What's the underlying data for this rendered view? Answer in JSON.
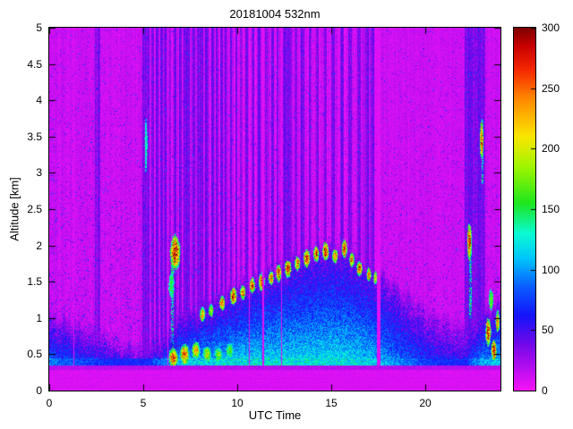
{
  "chart_data": {
    "type": "heatmap",
    "title": "20181004 532nm",
    "xlabel": "UTC Time",
    "ylabel": "Altitude [km]",
    "x_range": [
      0,
      24
    ],
    "y_range": [
      0,
      5
    ],
    "x_ticks": [
      0,
      5,
      10,
      15,
      20
    ],
    "x_tick_labels": [
      "0",
      "5",
      "10",
      "15",
      "20"
    ],
    "y_ticks": [
      0,
      0.5,
      1,
      1.5,
      2,
      2.5,
      3,
      3.5,
      4,
      4.5,
      5
    ],
    "y_tick_labels": [
      "0",
      "0.5",
      "1",
      "1.5",
      "2",
      "2.5",
      "3",
      "3.5",
      "4",
      "4.5",
      "5"
    ],
    "axes": {
      "tick_direction": "in",
      "box": true,
      "grid": false,
      "legend": "none"
    },
    "colorbar": {
      "min": 0,
      "max": 300,
      "ticks": [
        0,
        50,
        100,
        150,
        200,
        250,
        300
      ],
      "tick_labels": [
        "0",
        "50",
        "100",
        "150",
        "200",
        "250",
        "300"
      ],
      "position": "right"
    },
    "colormap": [
      [
        0,
        "#F714F7"
      ],
      [
        38,
        "#7208E8"
      ],
      [
        62,
        "#1414FA"
      ],
      [
        85,
        "#0A5AFF"
      ],
      [
        110,
        "#00C8FA"
      ],
      [
        130,
        "#0AFAD2"
      ],
      [
        155,
        "#1EE61E"
      ],
      [
        185,
        "#A0F500"
      ],
      [
        210,
        "#FAE600"
      ],
      [
        240,
        "#FF8C00"
      ],
      [
        265,
        "#F52800"
      ],
      [
        285,
        "#C80000"
      ],
      [
        300,
        "#7D0000"
      ]
    ],
    "field": {
      "background": {
        "base": 6,
        "noise": 13,
        "speckle_prob": 0.05,
        "speckle_value": 30,
        "speckle_spread": 55
      },
      "surface_band": {
        "top_km": 0.28,
        "value": 5,
        "noise": 7
      },
      "transition_band": {
        "z0": 0.28,
        "z1": 0.34,
        "value": 13,
        "noise": 11
      },
      "boundary_layer": {
        "z_base_km": 0.3,
        "value_bottom": 128,
        "value_top": 40,
        "noise": 46,
        "top_km_points": [
          [
            0,
            0.95
          ],
          [
            1,
            0.9
          ],
          [
            2,
            0.8
          ],
          [
            3,
            0.72
          ],
          [
            4,
            0.62
          ],
          [
            5,
            0.55
          ],
          [
            6,
            0.62
          ],
          [
            6.5,
            0.8
          ],
          [
            7,
            0.95
          ],
          [
            8,
            1.05
          ],
          [
            9,
            1.18
          ],
          [
            10,
            1.32
          ],
          [
            11,
            1.45
          ],
          [
            12,
            1.58
          ],
          [
            13,
            1.72
          ],
          [
            14,
            1.82
          ],
          [
            15,
            1.88
          ],
          [
            16,
            1.78
          ],
          [
            17,
            1.62
          ],
          [
            18,
            1.45
          ],
          [
            19,
            1.25
          ],
          [
            20,
            1.08
          ],
          [
            21,
            0.95
          ],
          [
            22,
            0.88
          ],
          [
            23,
            1.0
          ],
          [
            24,
            1.1
          ]
        ],
        "intensity_points": [
          [
            0,
            0.75
          ],
          [
            2,
            0.62
          ],
          [
            4,
            0.52
          ],
          [
            5,
            0.5
          ],
          [
            6,
            0.72
          ],
          [
            7,
            0.9
          ],
          [
            8,
            0.95
          ],
          [
            10,
            1
          ],
          [
            14,
            1
          ],
          [
            16,
            1
          ],
          [
            17,
            0.95
          ],
          [
            18,
            0.85
          ],
          [
            19,
            0.72
          ],
          [
            20,
            0.62
          ],
          [
            21,
            0.55
          ],
          [
            22,
            0.5
          ],
          [
            23,
            0.85
          ],
          [
            24,
            0.95
          ]
        ]
      },
      "stripe_dark_value": {
        "base": 24,
        "noise": 22
      },
      "stripe_bright_value": {
        "base": 3,
        "noise": 8
      },
      "dark_stripes": [
        [
          2.42,
          2.52
        ],
        [
          2.58,
          2.72
        ],
        [
          4.97,
          5.35
        ],
        [
          5.45,
          5.55
        ],
        [
          5.65,
          5.8
        ],
        [
          5.9,
          6.05
        ],
        [
          6.1,
          6.22
        ],
        [
          6.38,
          6.5
        ],
        [
          6.6,
          6.75
        ],
        [
          6.9,
          7.05
        ],
        [
          7.15,
          7.5
        ],
        [
          7.6,
          7.75
        ],
        [
          7.85,
          8.2
        ],
        [
          8.3,
          8.5
        ],
        [
          8.6,
          8.75
        ],
        [
          8.85,
          9.0
        ],
        [
          9.1,
          9.25
        ],
        [
          9.35,
          9.45
        ],
        [
          9.6,
          9.7
        ],
        [
          9.9,
          10.0
        ],
        [
          10.15,
          10.25
        ],
        [
          10.45,
          10.55
        ],
        [
          10.8,
          10.9
        ],
        [
          11.1,
          11.25
        ],
        [
          11.5,
          11.6
        ],
        [
          11.8,
          11.95
        ],
        [
          12.1,
          12.2
        ],
        [
          12.45,
          12.9
        ],
        [
          13.05,
          13.2
        ],
        [
          13.4,
          13.55
        ],
        [
          13.8,
          13.95
        ],
        [
          14.2,
          14.35
        ],
        [
          14.6,
          14.75
        ],
        [
          15.0,
          15.2
        ],
        [
          15.5,
          15.65
        ],
        [
          15.9,
          16.1
        ],
        [
          16.4,
          16.55
        ],
        [
          16.8,
          17.0
        ],
        [
          17.1,
          17.3
        ],
        [
          22.1,
          23.2
        ]
      ],
      "bright_stripes": [
        [
          1.28,
          1.34
        ],
        [
          6.28,
          6.34
        ],
        [
          10.62,
          10.68
        ],
        [
          11.35,
          11.42
        ],
        [
          12.32,
          12.4
        ],
        [
          17.42,
          17.62
        ]
      ],
      "clouds": [
        [
          6.7,
          1.9,
          0.55,
          0.5,
          300
        ],
        [
          6.5,
          1.45,
          0.3,
          0.35,
          150
        ],
        [
          6.6,
          0.45,
          0.5,
          0.28,
          285
        ],
        [
          7.2,
          0.5,
          0.5,
          0.3,
          265
        ],
        [
          7.8,
          0.55,
          0.45,
          0.25,
          235
        ],
        [
          8.4,
          0.5,
          0.45,
          0.22,
          205
        ],
        [
          9.0,
          0.5,
          0.4,
          0.2,
          185
        ],
        [
          9.6,
          0.55,
          0.4,
          0.2,
          170
        ],
        [
          8.15,
          1.05,
          0.3,
          0.2,
          240
        ],
        [
          8.6,
          1.1,
          0.28,
          0.18,
          205
        ],
        [
          9.2,
          1.2,
          0.3,
          0.2,
          260
        ],
        [
          9.8,
          1.3,
          0.35,
          0.25,
          290
        ],
        [
          10.3,
          1.35,
          0.3,
          0.2,
          250
        ],
        [
          10.8,
          1.45,
          0.3,
          0.22,
          280
        ],
        [
          11.3,
          1.5,
          0.35,
          0.25,
          300
        ],
        [
          11.8,
          1.55,
          0.3,
          0.2,
          260
        ],
        [
          12.2,
          1.62,
          0.28,
          0.25,
          290
        ],
        [
          12.7,
          1.68,
          0.35,
          0.25,
          300
        ],
        [
          13.2,
          1.75,
          0.3,
          0.2,
          270
        ],
        [
          13.7,
          1.82,
          0.35,
          0.25,
          300
        ],
        [
          14.2,
          1.88,
          0.3,
          0.22,
          280
        ],
        [
          14.7,
          1.92,
          0.35,
          0.25,
          300
        ],
        [
          15.2,
          1.85,
          0.3,
          0.2,
          260
        ],
        [
          15.7,
          1.95,
          0.3,
          0.25,
          290
        ],
        [
          16.1,
          1.8,
          0.28,
          0.2,
          255
        ],
        [
          16.5,
          1.68,
          0.3,
          0.2,
          280
        ],
        [
          17.0,
          1.6,
          0.25,
          0.2,
          245
        ],
        [
          17.35,
          1.55,
          0.2,
          0.18,
          225
        ],
        [
          22.35,
          2.05,
          0.25,
          0.5,
          295
        ],
        [
          23.0,
          3.45,
          0.2,
          0.55,
          270
        ],
        [
          23.35,
          0.8,
          0.3,
          0.4,
          285
        ],
        [
          23.65,
          0.55,
          0.3,
          0.3,
          300
        ],
        [
          23.85,
          0.95,
          0.22,
          0.3,
          260
        ],
        [
          23.5,
          1.25,
          0.25,
          0.3,
          185
        ],
        [
          5.15,
          3.4,
          0.15,
          0.6,
          130
        ]
      ],
      "streaks": [
        [
          6.55,
          0.6,
          1.75,
          0.14,
          115
        ],
        [
          5.15,
          3.0,
          3.75,
          0.1,
          100
        ],
        [
          22.4,
          1.0,
          1.95,
          0.12,
          125
        ],
        [
          23.05,
          2.85,
          3.75,
          0.12,
          115
        ]
      ]
    }
  }
}
